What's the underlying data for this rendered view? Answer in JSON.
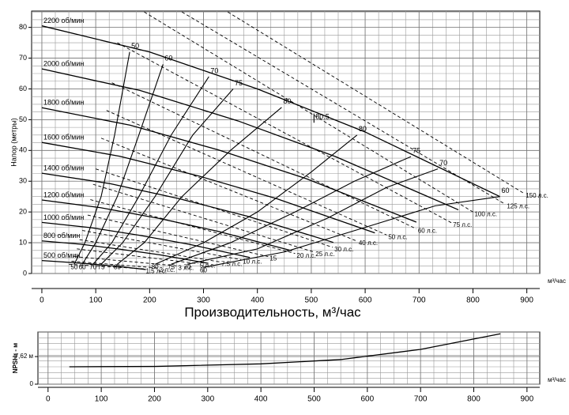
{
  "chart_data": [
    {
      "type": "line",
      "ylabel": "Напор (метры)",
      "xlabel": "Производительность, м³/час",
      "xunit": "м³/час",
      "xlim": [
        -19,
        924
      ],
      "ylim": [
        0,
        85.3
      ],
      "xticks": [
        0,
        100,
        200,
        300,
        400,
        500,
        600,
        700,
        800,
        900
      ],
      "yticks": [
        0,
        10,
        20,
        30,
        40,
        50,
        60,
        70,
        80
      ],
      "grid": true,
      "minor_grid": {
        "x": 25,
        "y": 2.5
      },
      "color": "#000000",
      "series": [
        {
          "name": "2200 об/мин",
          "x": [
            0,
            200,
            400,
            600,
            850
          ],
          "values": [
            80.5,
            72,
            60,
            46,
            25
          ]
        },
        {
          "name": "2000 об/мин",
          "x": [
            0,
            182,
            364,
            545,
            773
          ],
          "values": [
            66.5,
            59.5,
            49.6,
            38,
            20.7
          ]
        },
        {
          "name": "1800 об/мин",
          "x": [
            0,
            164,
            327,
            491,
            695
          ],
          "values": [
            53.9,
            48.2,
            40.2,
            30.8,
            16.7
          ]
        },
        {
          "name": "1600 об/мин",
          "x": [
            0,
            145,
            291,
            436,
            618
          ],
          "values": [
            42.6,
            38.1,
            31.7,
            24.3,
            13.2
          ]
        },
        {
          "name": "1400 об/мин",
          "x": [
            0,
            127,
            255,
            382,
            541
          ],
          "values": [
            32.6,
            29.2,
            24.3,
            18.6,
            10.1
          ]
        },
        {
          "name": "1200 об/мин",
          "x": [
            0,
            109,
            218,
            327,
            464
          ],
          "values": [
            23.9,
            21.4,
            17.9,
            13.7,
            7.4
          ]
        },
        {
          "name": "1000 об/мин",
          "x": [
            0,
            91,
            182,
            273,
            386
          ],
          "values": [
            16.6,
            14.9,
            12.4,
            9.5,
            5.2
          ]
        },
        {
          "name": "800 об/мин",
          "x": [
            0,
            73,
            145,
            218,
            309
          ],
          "values": [
            10.6,
            9.5,
            7.9,
            6.1,
            3.3
          ]
        },
        {
          "name": "500 об/мин",
          "x": [
            0,
            45,
            91,
            136,
            193
          ],
          "values": [
            4.2,
            3.7,
            3.1,
            2.4,
            1.3
          ]
        }
      ],
      "efficiency_curves": [
        {
          "name": "50",
          "x": [
            60,
            80,
            110,
            135,
            163
          ],
          "values": [
            3,
            10,
            25,
            45,
            72
          ]
        },
        {
          "name": "60",
          "x": [
            75,
            100,
            140,
            180,
            225
          ],
          "values": [
            3,
            10,
            25,
            45,
            68
          ]
        },
        {
          "name": "70",
          "x": [
            95,
            130,
            180,
            240,
            310
          ],
          "values": [
            3,
            10,
            25,
            45,
            64
          ]
        },
        {
          "name": "75",
          "x": [
            110,
            150,
            210,
            280,
            355
          ],
          "values": [
            3,
            10,
            25,
            45,
            60
          ]
        },
        {
          "name": "80",
          "x": [
            140,
            190,
            260,
            350,
            445
          ],
          "values": [
            3,
            10,
            25,
            40,
            54
          ]
        },
        {
          "name": "80.5",
          "x": [
            505,
            505
          ],
          "values": [
            52,
            49
          ]
        },
        {
          "name": "80",
          "x": [
            210,
            300,
            400,
            500,
            585
          ],
          "values": [
            3,
            10,
            20,
            33,
            45
          ]
        },
        {
          "name": "75",
          "x": [
            240,
            350,
            470,
            580,
            685
          ],
          "values": [
            3,
            10,
            20,
            30,
            38
          ]
        },
        {
          "name": "70",
          "x": [
            270,
            400,
            530,
            640,
            735
          ],
          "values": [
            3,
            8,
            18,
            28,
            34
          ]
        },
        {
          "name": "60",
          "x": [
            300,
            450,
            600,
            730,
            850
          ],
          "values": [
            2,
            7,
            15,
            22,
            25
          ]
        }
      ],
      "power_curves": [
        {
          "name": "150 л.с.",
          "x": [
            345,
            895
          ],
          "values": [
            85,
            26
          ]
        },
        {
          "name": "125 л.с.",
          "x": [
            260,
            860
          ],
          "values": [
            85,
            22.5
          ]
        },
        {
          "name": "100 л.с.",
          "x": [
            190,
            800
          ],
          "values": [
            85,
            20
          ]
        },
        {
          "name": "75 л.с.",
          "x": [
            140,
            760
          ],
          "values": [
            75,
            16.5
          ]
        },
        {
          "name": "60 л.с.",
          "x": [
            130,
            695
          ],
          "values": [
            62,
            14.5
          ]
        },
        {
          "name": "50 л.с.",
          "x": [
            120,
            640
          ],
          "values": [
            53,
            12.5
          ]
        },
        {
          "name": "40 л.с.",
          "x": [
            110,
            585
          ],
          "values": [
            44,
            10.5
          ]
        },
        {
          "name": "30 л.с.",
          "x": [
            100,
            540
          ],
          "values": [
            34,
            8.5
          ]
        },
        {
          "name": "25 л.с.",
          "x": [
            95,
            505
          ],
          "values": [
            29,
            7
          ]
        },
        {
          "name": "20 л.с.",
          "x": [
            90,
            470
          ],
          "values": [
            24,
            6.5
          ]
        },
        {
          "name": "15",
          "x": [
            85,
            420
          ],
          "values": [
            19,
            5.5
          ]
        },
        {
          "name": "10 л.с.",
          "x": [
            75,
            370
          ],
          "values": [
            14,
            4.5
          ]
        },
        {
          "name": "7.5 л.с.",
          "x": [
            70,
            330
          ],
          "values": [
            11,
            3.8
          ]
        },
        {
          "name": "5 л.с.",
          "x": [
            65,
            290
          ],
          "values": [
            8,
            3.2
          ]
        },
        {
          "name": "3 л.с.",
          "x": [
            60,
            250
          ],
          "values": [
            5.5,
            2.5
          ]
        },
        {
          "name": "2 л.с.",
          "x": [
            55,
            215
          ],
          "values": [
            4,
            1.8
          ]
        },
        {
          "name": "1.5 л.с.",
          "x": [
            50,
            190
          ],
          "values": [
            3,
            1.5
          ]
        }
      ]
    },
    {
      "type": "line",
      "ylabel": "NPSHr - м",
      "xunit": "м³/час",
      "xlim": [
        -19,
        924
      ],
      "ylim": [
        0,
        14.4
      ],
      "xticks": [
        0,
        100,
        200,
        300,
        400,
        500,
        600,
        700,
        800,
        900
      ],
      "yticks": [
        0,
        {
          "value": 7.62,
          "label": "7,62 м"
        }
      ],
      "grid": true,
      "minor_grid": {
        "x": 25,
        "y": 1.6
      },
      "color": "#000000",
      "x": [
        40,
        200,
        400,
        550,
        700,
        850
      ],
      "values": [
        4.8,
        4.9,
        5.6,
        6.8,
        9.6,
        13.9
      ]
    }
  ]
}
